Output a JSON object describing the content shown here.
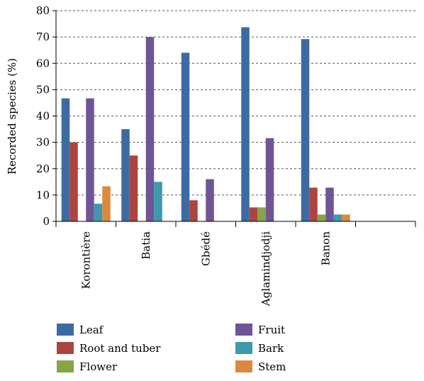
{
  "chart_data": {
    "type": "bar",
    "title": "",
    "xlabel": "",
    "ylabel": "Recorded species (%)",
    "ylim": [
      0,
      80
    ],
    "yticks": [
      0,
      10,
      20,
      30,
      40,
      50,
      60,
      70,
      80
    ],
    "grid": true,
    "legend_position": "bottom",
    "categories": [
      "Korontière",
      "Batia",
      "Gbédé",
      "Aglamindjodji",
      "Banon"
    ],
    "series": [
      {
        "name": "Leaf",
        "color": "#3e6aa4",
        "values": [
          46.7,
          35.0,
          64.0,
          73.7,
          69.2
        ]
      },
      {
        "name": "Root and tuber",
        "color": "#ac4441",
        "values": [
          30.0,
          25.0,
          8.0,
          5.3,
          12.8
        ]
      },
      {
        "name": "Flower",
        "color": "#85a546",
        "values": [
          0,
          0,
          0,
          5.3,
          2.6
        ]
      },
      {
        "name": "Fruit",
        "color": "#6f5596",
        "values": [
          46.7,
          70.0,
          16.0,
          31.6,
          12.8
        ]
      },
      {
        "name": "Bark",
        "color": "#3d99ad",
        "values": [
          6.7,
          15.0,
          0,
          0,
          2.6
        ]
      },
      {
        "name": "Stem",
        "color": "#db8a3d",
        "values": [
          13.3,
          0,
          0,
          0,
          2.6
        ]
      }
    ]
  }
}
